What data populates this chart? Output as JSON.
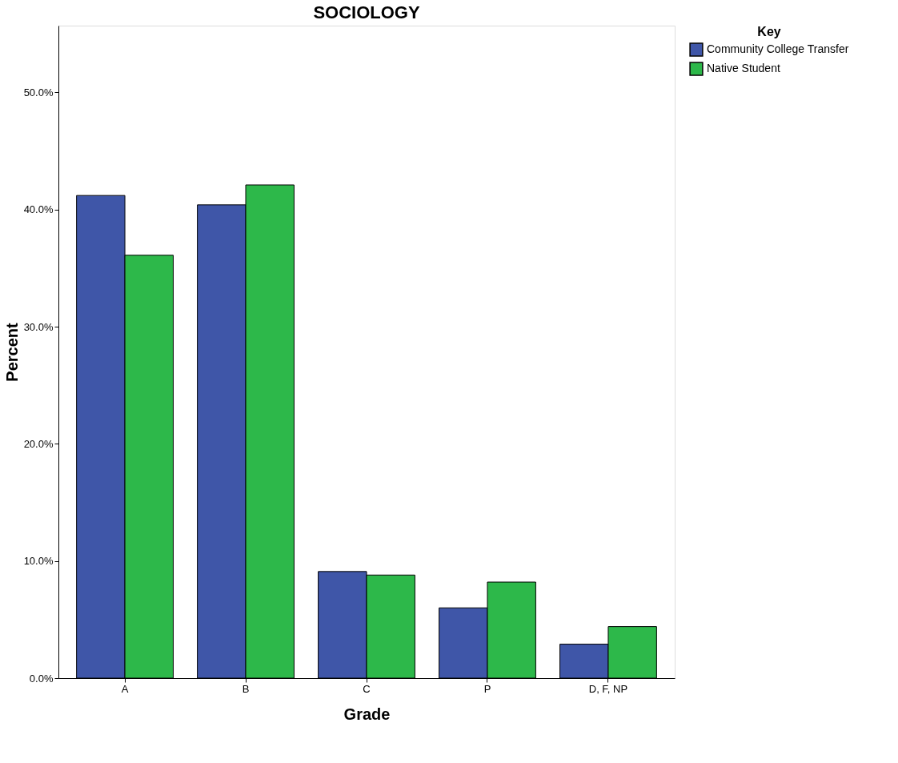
{
  "chart_data": {
    "type": "bar",
    "title": "SOCIOLOGY",
    "xlabel": "Grade",
    "ylabel": "Percent",
    "legend_title": "Key",
    "legend": "top right",
    "categories": [
      "A",
      "B",
      "C",
      "P",
      "D, F, NP"
    ],
    "series": [
      {
        "name": "Community College Transfer",
        "color": "#3f56a8",
        "values": [
          41.2,
          40.4,
          9.1,
          6.0,
          2.9
        ]
      },
      {
        "name": "Native Student",
        "color": "#2db84a",
        "values": [
          36.1,
          42.1,
          8.8,
          8.2,
          4.4
        ]
      }
    ],
    "ylim": [
      0,
      55.7
    ],
    "yticks": [
      {
        "value": 0,
        "label": "0.0%"
      },
      {
        "value": 10,
        "label": "10.0%"
      },
      {
        "value": 20,
        "label": "20.0%"
      },
      {
        "value": 30,
        "label": "30.0%"
      },
      {
        "value": 40,
        "label": "40.0%"
      },
      {
        "value": 50,
        "label": "50.0%"
      }
    ]
  }
}
